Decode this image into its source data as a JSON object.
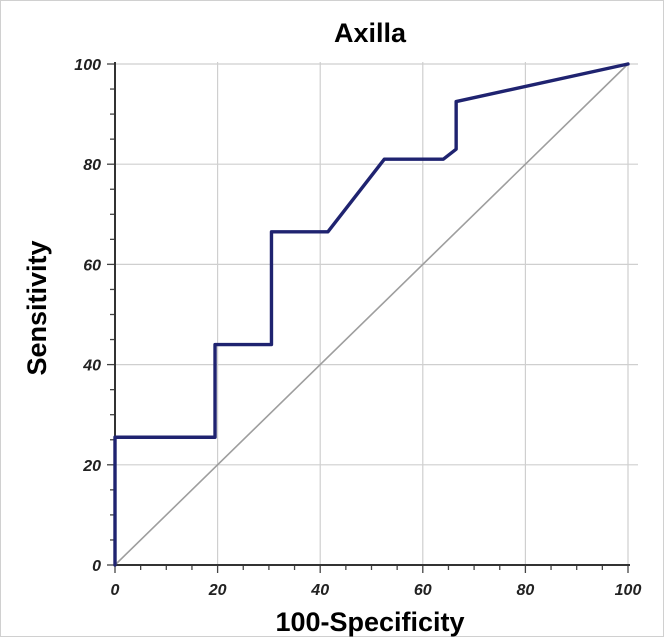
{
  "chart_data": {
    "type": "line",
    "title": "Axilla",
    "xlabel": "100-Specificity",
    "ylabel": "Sensitivity",
    "xlim": [
      0,
      100
    ],
    "ylim": [
      0,
      100
    ],
    "x_ticks": [
      "0",
      "20",
      "40",
      "60",
      "80",
      "100"
    ],
    "y_ticks": [
      "0",
      "20",
      "40",
      "60",
      "80",
      "100"
    ],
    "grid": true,
    "series": [
      {
        "color": "#1f2370",
        "style": "step",
        "points": [
          [
            0,
            0
          ],
          [
            0,
            25.5
          ],
          [
            19.5,
            25.5
          ],
          [
            19.5,
            44
          ],
          [
            30.5,
            44
          ],
          [
            30.5,
            66.5
          ],
          [
            41.5,
            66.5
          ],
          [
            52.5,
            81
          ],
          [
            64,
            81
          ],
          [
            66.5,
            83
          ],
          [
            66.5,
            92.5
          ],
          [
            100,
            100
          ]
        ]
      },
      {
        "color": "#9e9e9e",
        "style": "reference",
        "points": [
          [
            0,
            0
          ],
          [
            100,
            100
          ]
        ]
      }
    ]
  }
}
